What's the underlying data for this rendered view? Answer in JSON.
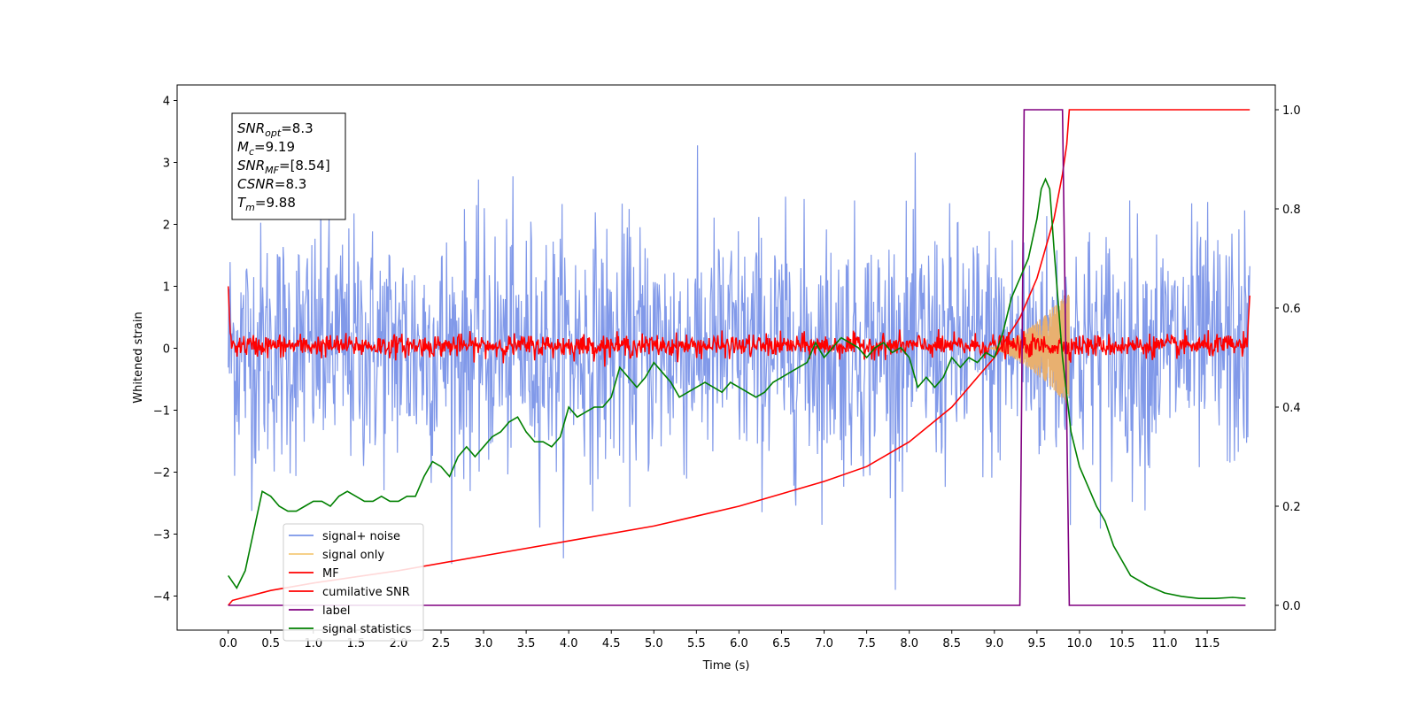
{
  "chart_data": {
    "type": "line",
    "xlabel": "Time (s)",
    "ylabel": "Whitened strain",
    "xlim": [
      -0.6,
      12.3
    ],
    "ylim": [
      -4.55,
      4.25
    ],
    "y2lim": [
      -0.05,
      1.05
    ],
    "x_ticks": [
      "0.0",
      "0.5",
      "1.0",
      "1.5",
      "2.0",
      "2.5",
      "3.0",
      "3.5",
      "4.0",
      "4.5",
      "5.0",
      "5.5",
      "6.0",
      "6.5",
      "7.0",
      "7.5",
      "8.0",
      "8.5",
      "9.0",
      "9.5",
      "10.0",
      "10.5",
      "11.0",
      "11.5"
    ],
    "y_ticks": [
      {
        "v": 4,
        "t": "4"
      },
      {
        "v": 3,
        "t": "3"
      },
      {
        "v": 2,
        "t": "2"
      },
      {
        "v": 1,
        "t": "1"
      },
      {
        "v": 0,
        "t": "0"
      },
      {
        "v": -1,
        "t": "−1"
      },
      {
        "v": -2,
        "t": "−2"
      },
      {
        "v": -3,
        "t": "−3"
      },
      {
        "v": -4,
        "t": "−4"
      }
    ],
    "y2_ticks": [
      "0.0",
      "0.2",
      "0.4",
      "0.6",
      "0.8",
      "1.0"
    ],
    "annotations": [
      {
        "base": "SNR",
        "sub": "opt",
        "rest": "=8.3"
      },
      {
        "base": "M",
        "sub": "c",
        "rest": "=9.19"
      },
      {
        "base": "SNR",
        "sub": "MF",
        "rest": "=[8.54]"
      },
      {
        "base": "CSNR",
        "sub": "",
        "rest": "=8.3"
      },
      {
        "base": "T",
        "sub": "m",
        "rest": "=9.88"
      }
    ],
    "legend": [
      {
        "label": "signal+ noise",
        "color": "#7a94e8"
      },
      {
        "label": "signal only",
        "color": "#f5c97a"
      },
      {
        "label": "MF",
        "color": "#ff0000"
      },
      {
        "label": "cumilative SNR",
        "color": "#ff0000"
      },
      {
        "label": "label",
        "color": "#800080"
      },
      {
        "label": "signal statistics",
        "color": "#008000"
      }
    ],
    "series": [
      {
        "name": "signal+ noise",
        "axis": "left",
        "color": "#7a94e8",
        "x_start": 0.0,
        "x_end": 12.0,
        "envelope": [
          2.3,
          -2.3
        ],
        "random": true
      },
      {
        "name": "signal only",
        "axis": "left",
        "color": "#e8b070",
        "chirp_start": 8.9,
        "chirp_end": 9.88,
        "peak_amplitude": 0.95
      },
      {
        "name": "MF",
        "axis": "left",
        "color": "#ff0000",
        "x_start": 0.0,
        "x_end": 12.0,
        "envelope": [
          0.28,
          -0.15
        ],
        "random": true
      },
      {
        "name": "cumilative SNR",
        "axis": "right",
        "color": "#ff0000",
        "x": [
          0.0,
          0.05,
          0.5,
          1.0,
          2.0,
          3.0,
          4.0,
          5.0,
          6.0,
          7.0,
          7.5,
          8.0,
          8.5,
          9.0,
          9.3,
          9.5,
          9.7,
          9.8,
          9.85,
          9.88,
          12.0
        ],
        "values": [
          0.0,
          0.01,
          0.03,
          0.045,
          0.07,
          0.1,
          0.13,
          0.16,
          0.2,
          0.25,
          0.28,
          0.33,
          0.4,
          0.5,
          0.58,
          0.66,
          0.78,
          0.87,
          0.93,
          1.0,
          1.0
        ]
      },
      {
        "name": "label",
        "axis": "right",
        "color": "#800080",
        "x": [
          0.0,
          9.3,
          9.35,
          9.8,
          9.88,
          11.95
        ],
        "values": [
          0.0,
          0.0,
          1.0,
          1.0,
          0.0,
          0.0
        ]
      },
      {
        "name": "signal statistics",
        "axis": "right",
        "color": "#008000",
        "x": [
          0.0,
          0.1,
          0.2,
          0.3,
          0.35,
          0.4,
          0.5,
          0.6,
          0.7,
          0.8,
          0.9,
          1.0,
          1.1,
          1.2,
          1.3,
          1.4,
          1.5,
          1.6,
          1.7,
          1.8,
          1.9,
          2.0,
          2.1,
          2.2,
          2.3,
          2.4,
          2.5,
          2.6,
          2.7,
          2.8,
          2.9,
          3.0,
          3.1,
          3.2,
          3.3,
          3.4,
          3.5,
          3.6,
          3.7,
          3.8,
          3.9,
          4.0,
          4.1,
          4.2,
          4.3,
          4.4,
          4.5,
          4.6,
          4.7,
          4.8,
          4.9,
          5.0,
          5.1,
          5.2,
          5.3,
          5.4,
          5.5,
          5.6,
          5.7,
          5.8,
          5.9,
          6.0,
          6.1,
          6.2,
          6.3,
          6.4,
          6.5,
          6.6,
          6.7,
          6.8,
          6.9,
          7.0,
          7.1,
          7.2,
          7.3,
          7.4,
          7.5,
          7.6,
          7.7,
          7.8,
          7.9,
          8.0,
          8.1,
          8.2,
          8.3,
          8.4,
          8.5,
          8.6,
          8.7,
          8.8,
          8.9,
          9.0,
          9.1,
          9.2,
          9.3,
          9.4,
          9.5,
          9.55,
          9.6,
          9.65,
          9.7,
          9.8,
          9.9,
          10.0,
          10.1,
          10.2,
          10.3,
          10.4,
          10.5,
          10.6,
          10.8,
          11.0,
          11.2,
          11.4,
          11.6,
          11.8,
          11.95
        ],
        "values": [
          0.06,
          0.035,
          0.07,
          0.15,
          0.19,
          0.23,
          0.22,
          0.2,
          0.19,
          0.19,
          0.2,
          0.21,
          0.21,
          0.2,
          0.22,
          0.23,
          0.22,
          0.21,
          0.21,
          0.22,
          0.21,
          0.21,
          0.22,
          0.22,
          0.26,
          0.29,
          0.28,
          0.26,
          0.3,
          0.32,
          0.3,
          0.32,
          0.34,
          0.35,
          0.37,
          0.38,
          0.35,
          0.33,
          0.33,
          0.32,
          0.34,
          0.4,
          0.38,
          0.39,
          0.4,
          0.4,
          0.42,
          0.48,
          0.46,
          0.44,
          0.46,
          0.49,
          0.47,
          0.45,
          0.42,
          0.43,
          0.44,
          0.45,
          0.44,
          0.43,
          0.45,
          0.44,
          0.43,
          0.42,
          0.43,
          0.45,
          0.46,
          0.47,
          0.48,
          0.49,
          0.53,
          0.5,
          0.52,
          0.54,
          0.53,
          0.52,
          0.5,
          0.52,
          0.53,
          0.51,
          0.52,
          0.5,
          0.44,
          0.46,
          0.44,
          0.46,
          0.5,
          0.48,
          0.5,
          0.49,
          0.51,
          0.5,
          0.55,
          0.62,
          0.66,
          0.7,
          0.78,
          0.84,
          0.86,
          0.84,
          0.72,
          0.5,
          0.35,
          0.28,
          0.24,
          0.2,
          0.17,
          0.12,
          0.09,
          0.06,
          0.04,
          0.025,
          0.018,
          0.014,
          0.014,
          0.016,
          0.014
        ]
      }
    ]
  }
}
